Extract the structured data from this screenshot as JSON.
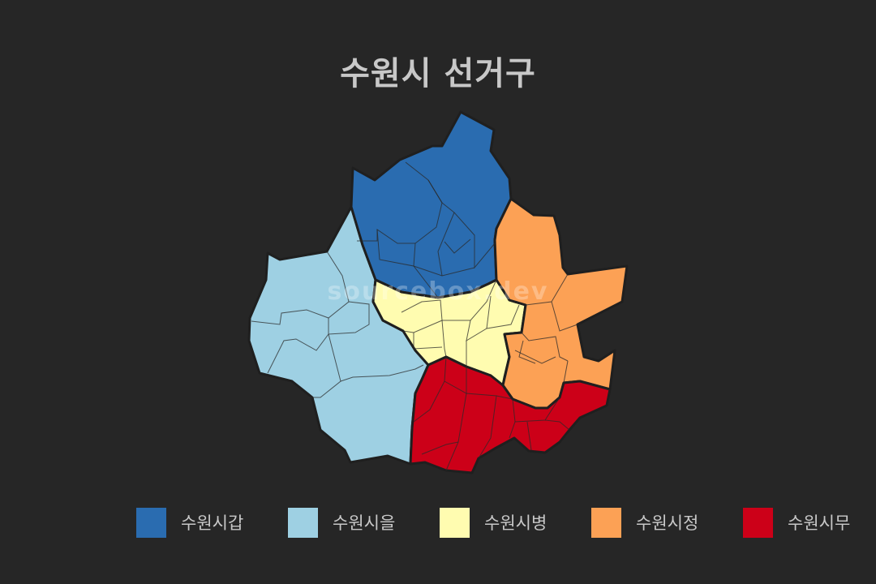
{
  "title": "수원시 선거구",
  "watermark": "sourcebox.dev",
  "districts": [
    {
      "id": "gap",
      "name": "수원시갑",
      "color": "#2a6cb0"
    },
    {
      "id": "eul",
      "name": "수원시을",
      "color": "#9ed0e3"
    },
    {
      "id": "byeong",
      "name": "수원시병",
      "color": "#fffcb0"
    },
    {
      "id": "jeong",
      "name": "수원시정",
      "color": "#fca155"
    },
    {
      "id": "mu",
      "name": "수원시무",
      "color": "#cc0018"
    }
  ]
}
